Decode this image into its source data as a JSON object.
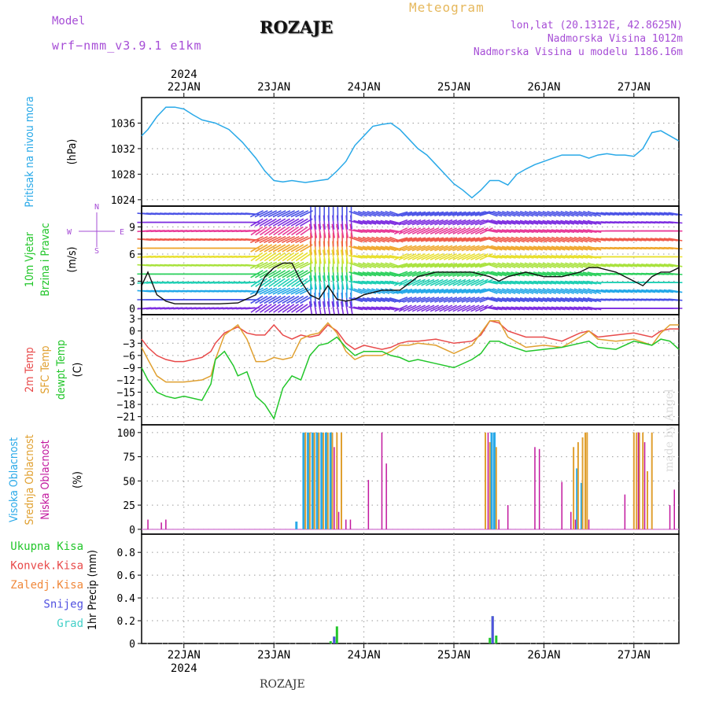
{
  "header": {
    "model_label": "Model",
    "model_name": "wrf−nmm_v3.9.1  e1km",
    "title": "ROZAJE",
    "product": "Meteogram",
    "lonlat": "lon,lat (20.1312E, 42.8625N)",
    "elevation": "Nadmorska Visina 1012m",
    "elevation_model": "Nadmorska Visina u modelu 1186.16m"
  },
  "footer": {
    "station": "ROZAJE",
    "credit": "made by Angel"
  },
  "time_axis": {
    "year_label": "2024",
    "days": [
      "22JAN",
      "23JAN",
      "24JAN",
      "25JAN",
      "26JAN",
      "27JAN"
    ],
    "start_day": 21.53,
    "end_day": 27.5
  },
  "colors": {
    "pressure": "#29a9e8",
    "temp2m": "#e84a4a",
    "sfctemp": "#e0a030",
    "dewpoint": "#22c62a",
    "high_cloud": "#29a9e8",
    "mid_cloud": "#e0a030",
    "low_cloud": "#c2189e",
    "total_precip": "#22c62a",
    "conv_precip": "#e84a4a",
    "frozen_precip": "#f0883a",
    "snow": "#5050e0",
    "graupel": "#44d0c8",
    "wind_label": "#22c62a",
    "compass": "#a64dd6"
  },
  "chart_data": [
    {
      "id": "pressure",
      "type": "line",
      "ylabel_main": "Pritisak na nivou mora",
      "ylabel_unit": "(hPa)",
      "ylim": [
        1023,
        1040
      ],
      "yticks": [
        1024,
        1028,
        1032,
        1036
      ],
      "grid": true,
      "series": [
        {
          "x": [
            21.53,
            21.6,
            21.7,
            21.8,
            21.9,
            22.0,
            22.1,
            22.2,
            22.35,
            22.5,
            22.65,
            22.8,
            22.9,
            23.0,
            23.1,
            23.2,
            23.35,
            23.5,
            23.6,
            23.7,
            23.8,
            23.9,
            24.0,
            24.1,
            24.2,
            24.3,
            24.4,
            24.5,
            24.6,
            24.7,
            24.8,
            24.9,
            25.0,
            25.1,
            25.2,
            25.3,
            25.4,
            25.5,
            25.6,
            25.7,
            25.8,
            25.9,
            26.0,
            26.1,
            26.2,
            26.3,
            26.4,
            26.5,
            26.6,
            26.7,
            26.8,
            26.9,
            27.0,
            27.1,
            27.2,
            27.3,
            27.4,
            27.5
          ],
          "y": [
            1034,
            1035,
            1037,
            1038.5,
            1038.5,
            1038.2,
            1037.3,
            1036.5,
            1036,
            1035,
            1033,
            1030.5,
            1028.5,
            1027,
            1026.8,
            1027,
            1026.7,
            1027,
            1027.2,
            1028.5,
            1030,
            1032.5,
            1034,
            1035.5,
            1035.8,
            1036,
            1035,
            1033.5,
            1032,
            1031,
            1029.5,
            1028,
            1026.5,
            1025.5,
            1024.3,
            1025.5,
            1027,
            1027,
            1026.3,
            1028,
            1028.8,
            1029.5,
            1030,
            1030.5,
            1031,
            1031,
            1031,
            1030.5,
            1031,
            1031.2,
            1031,
            1031,
            1030.8,
            1032,
            1034.5,
            1034.8,
            1034,
            1033.2
          ]
        }
      ]
    },
    {
      "id": "wind",
      "type": "line",
      "ylabel_main": "10m Vjetar",
      "ylabel_main2": "Brzina i Pravac",
      "ylabel_unit": "(m/s)",
      "compass": [
        "N",
        "S",
        "W",
        "E"
      ],
      "ylim": [
        -0.7,
        11.3
      ],
      "yticks": [
        0,
        3,
        6,
        9
      ],
      "grid": true,
      "series": [
        {
          "name": "speed",
          "x": [
            21.53,
            21.6,
            21.7,
            21.8,
            21.9,
            22.0,
            22.2,
            22.4,
            22.6,
            22.8,
            22.9,
            23.0,
            23.1,
            23.2,
            23.3,
            23.4,
            23.5,
            23.6,
            23.7,
            23.8,
            23.9,
            24.0,
            24.2,
            24.4,
            24.6,
            24.8,
            25.0,
            25.2,
            25.4,
            25.5,
            25.6,
            25.8,
            26.0,
            26.2,
            26.4,
            26.5,
            26.6,
            26.8,
            27.0,
            27.1,
            27.2,
            27.3,
            27.4,
            27.5
          ],
          "y": [
            2.5,
            4,
            1.5,
            0.8,
            0.5,
            0.5,
            0.5,
            0.5,
            0.6,
            1.5,
            3.5,
            4.5,
            5,
            5,
            3,
            1.5,
            1,
            2.5,
            1,
            0.8,
            1,
            1.5,
            2,
            2,
            3.5,
            4,
            4,
            4,
            3.5,
            3,
            3.5,
            4,
            3.5,
            3.5,
            4,
            4.5,
            4.5,
            4,
            3,
            2.5,
            3.5,
            4,
            4,
            4.5
          ]
        }
      ]
    },
    {
      "id": "temperature",
      "type": "line",
      "ylabel_main": "2m Temp",
      "ylabel_main2": "SFC Temp",
      "ylabel_main3": "dewpt Temp",
      "ylabel_unit": "(C)",
      "ylim": [
        -23,
        4
      ],
      "yticks": [
        3,
        0,
        -3,
        -6,
        -9,
        -12,
        -15,
        -18,
        -21
      ],
      "grid": true,
      "series": [
        {
          "name": "2m Temp",
          "x": [
            21.53,
            21.6,
            21.7,
            21.8,
            21.9,
            22.0,
            22.2,
            22.3,
            22.35,
            22.45,
            22.6,
            22.7,
            22.8,
            22.9,
            23.0,
            23.1,
            23.2,
            23.3,
            23.4,
            23.5,
            23.6,
            23.7,
            23.8,
            23.9,
            24.0,
            24.2,
            24.3,
            24.4,
            24.5,
            24.6,
            24.8,
            25.0,
            25.2,
            25.3,
            25.4,
            25.5,
            25.6,
            25.8,
            26.0,
            26.2,
            26.4,
            26.5,
            26.6,
            26.8,
            27.0,
            27.2,
            27.3,
            27.4,
            27.5
          ],
          "y": [
            -2,
            -4,
            -6,
            -7,
            -7.5,
            -7.5,
            -6.5,
            -5,
            -3,
            -0.5,
            1,
            -0.5,
            -1,
            -1,
            1.5,
            -1,
            -2,
            -1,
            -1.5,
            -1,
            1.5,
            0,
            -3,
            -4.5,
            -3.5,
            -4.5,
            -4,
            -3,
            -2.5,
            -2.5,
            -2,
            -3,
            -2.5,
            -1,
            2.5,
            2,
            0,
            -1.5,
            -1.5,
            -2.5,
            -0.5,
            0,
            -1.5,
            -1,
            -0.5,
            -1.5,
            0,
            0.5,
            0.5
          ]
        },
        {
          "name": "SFC Temp",
          "x": [
            21.53,
            21.6,
            21.7,
            21.8,
            21.9,
            22.0,
            22.2,
            22.3,
            22.35,
            22.45,
            22.6,
            22.7,
            22.8,
            22.9,
            23.0,
            23.1,
            23.2,
            23.3,
            23.4,
            23.5,
            23.6,
            23.7,
            23.8,
            23.9,
            24.0,
            24.2,
            24.3,
            24.4,
            24.5,
            24.6,
            24.8,
            25.0,
            25.2,
            25.3,
            25.4,
            25.5,
            25.6,
            25.8,
            26.0,
            26.2,
            26.4,
            26.5,
            26.6,
            26.8,
            27.0,
            27.2,
            27.3,
            27.4,
            27.5
          ],
          "y": [
            -4,
            -7,
            -11,
            -12.5,
            -12.5,
            -12.5,
            -12,
            -11,
            -7,
            -1,
            1.5,
            -2,
            -7.5,
            -7.5,
            -6.5,
            -7,
            -6.5,
            -2,
            -1,
            -0.5,
            2,
            -0.5,
            -5,
            -7,
            -6,
            -6,
            -5,
            -3.5,
            -3.5,
            -3,
            -3.5,
            -5.5,
            -3.5,
            -0.5,
            2.5,
            2.5,
            -1.5,
            -4,
            -3.5,
            -4,
            -1.5,
            0,
            -2,
            -2.5,
            -2,
            -3.5,
            -0.5,
            1.5,
            1.5
          ]
        },
        {
          "name": "dewpt Temp",
          "x": [
            21.53,
            21.6,
            21.7,
            21.8,
            21.9,
            22.0,
            22.2,
            22.3,
            22.35,
            22.45,
            22.55,
            22.6,
            22.7,
            22.8,
            22.9,
            23.0,
            23.1,
            23.2,
            23.3,
            23.4,
            23.5,
            23.6,
            23.7,
            23.8,
            23.9,
            24.0,
            24.2,
            24.3,
            24.4,
            24.5,
            24.6,
            24.8,
            25.0,
            25.2,
            25.3,
            25.4,
            25.5,
            25.6,
            25.8,
            26.0,
            26.2,
            26.4,
            26.5,
            26.6,
            26.8,
            27.0,
            27.2,
            27.3,
            27.4,
            27.5
          ],
          "y": [
            -9,
            -12,
            -15,
            -16,
            -16.5,
            -16,
            -17,
            -13,
            -7,
            -5,
            -8.5,
            -11,
            -10,
            -16,
            -18,
            -21.5,
            -14,
            -11,
            -12,
            -6,
            -3.5,
            -3,
            -1.5,
            -4,
            -6,
            -5,
            -5,
            -6,
            -6.5,
            -7.5,
            -7,
            -8,
            -9,
            -7,
            -5.5,
            -2.5,
            -2.5,
            -3.5,
            -5,
            -4.5,
            -4,
            -3,
            -2.5,
            -4,
            -4.5,
            -2.5,
            -3.5,
            -2,
            -2.5,
            -4.5
          ]
        }
      ]
    },
    {
      "id": "cloud",
      "type": "bar",
      "ylabel_main": "Visoka Oblacnost",
      "ylabel_main2": "Srednja Oblacnost",
      "ylabel_main3": "Niska Oblacnost",
      "ylabel_unit": "(%)",
      "ylim": [
        -5,
        108
      ],
      "yticks": [
        0,
        25,
        50,
        75,
        100
      ],
      "grid": true,
      "series": [
        {
          "name": "high",
          "x": [
            23.25,
            23.33,
            23.38,
            23.43,
            23.48,
            23.53,
            23.58,
            23.63,
            25.42,
            25.45,
            26.37,
            26.42
          ],
          "y": [
            8,
            100,
            100,
            100,
            100,
            100,
            100,
            100,
            100,
            100,
            63,
            48
          ]
        },
        {
          "name": "mid",
          "x": [
            23.35,
            23.4,
            23.45,
            23.5,
            23.55,
            23.6,
            23.65,
            23.7,
            23.75,
            25.35,
            25.4,
            25.47,
            26.33,
            26.38,
            26.43,
            26.46,
            26.48,
            27.0,
            27.03,
            27.06,
            27.1,
            27.15,
            27.2
          ],
          "y": [
            100,
            100,
            100,
            100,
            100,
            100,
            100,
            100,
            100,
            100,
            90,
            85,
            85,
            90,
            95,
            100,
            100,
            100,
            100,
            100,
            100,
            60,
            100
          ]
        },
        {
          "name": "low",
          "x": [
            21.6,
            21.75,
            21.8,
            23.67,
            23.72,
            23.8,
            23.85,
            24.05,
            24.2,
            24.25,
            25.38,
            25.5,
            25.6,
            25.9,
            25.95,
            26.2,
            26.3,
            26.35,
            26.5,
            26.9,
            27.05,
            27.12,
            27.4,
            27.45
          ],
          "y": [
            10,
            7,
            10,
            85,
            18,
            10,
            10,
            51,
            100,
            68,
            100,
            10,
            25,
            85,
            83,
            49,
            18,
            10,
            10,
            36,
            100,
            90,
            25,
            41
          ]
        }
      ]
    },
    {
      "id": "precip",
      "type": "bar",
      "ylabel_main": "1hr Precip",
      "ylabel_unit": "(mm)",
      "legend": [
        "Ukupna Kisa",
        "Konvek.Kisa",
        "Zaledj.Kisa",
        "Snijeg",
        "Grad"
      ],
      "ylim": [
        0,
        0.96
      ],
      "yticks": [
        0,
        0.2,
        0.4,
        0.6,
        0.8
      ],
      "grid": true,
      "series": [
        {
          "name": "Ukupna Kisa",
          "x": [
            23.63,
            23.67,
            23.7,
            25.4,
            25.43,
            25.47
          ],
          "y": [
            0.02,
            0.06,
            0.15,
            0.05,
            0.24,
            0.07
          ]
        },
        {
          "name": "Snijeg",
          "x": [
            23.67,
            25.43
          ],
          "y": [
            0.06,
            0.24
          ]
        }
      ]
    }
  ]
}
